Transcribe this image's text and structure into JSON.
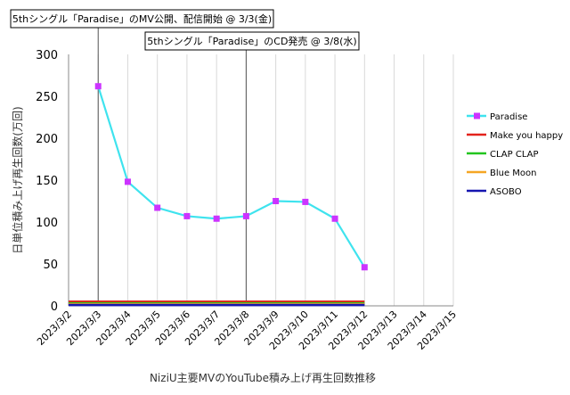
{
  "chart_data": {
    "type": "line",
    "title": "NiziU主要MVのYouTube積み上げ再生回数推移",
    "ylabel": "日単位積み上げ再生回数(万回)",
    "xlabel": "",
    "ylim": [
      0,
      300
    ],
    "yticks": [
      0,
      50,
      100,
      150,
      200,
      250,
      300
    ],
    "x": [
      "2023/3/2",
      "2023/3/3",
      "2023/3/4",
      "2023/3/5",
      "2023/3/6",
      "2023/3/7",
      "2023/3/8",
      "2023/3/9",
      "2023/3/10",
      "2023/3/11",
      "2023/3/12",
      "2023/3/13",
      "2023/3/14",
      "2023/3/15"
    ],
    "grid": "vertical",
    "legend_position": "right",
    "series": [
      {
        "name": "Paradise",
        "color": "#3fe3ee",
        "marker": "square",
        "marker_color": "#cc33ff",
        "values": [
          null,
          262,
          148,
          117,
          107,
          104,
          107,
          125,
          124,
          104,
          46,
          null,
          null,
          null
        ]
      },
      {
        "name": "Make you happy",
        "color": "#e3231c",
        "marker": "none",
        "values": [
          5,
          5,
          5,
          5,
          5,
          5,
          5,
          5,
          5,
          5,
          5,
          null,
          null,
          null
        ]
      },
      {
        "name": "CLAP CLAP",
        "color": "#22c51e",
        "marker": "none",
        "values": [
          3,
          3,
          3,
          3,
          3,
          3,
          3,
          3,
          3,
          3,
          3,
          null,
          null,
          null
        ]
      },
      {
        "name": "Blue Moon",
        "color": "#f5a623",
        "marker": "none",
        "values": [
          2,
          2,
          2,
          2,
          2,
          2,
          2,
          2,
          2,
          2,
          2,
          null,
          null,
          null
        ]
      },
      {
        "name": "ASOBO",
        "color": "#1515b0",
        "marker": "none",
        "values": [
          1,
          1,
          1,
          1,
          1,
          1,
          1,
          1,
          1,
          1,
          1,
          null,
          null,
          null
        ]
      }
    ],
    "annotations": [
      {
        "text": "5thシングル「Paradise」のMV公開、配信開始 @ 3/3(金)",
        "at": "2023/3/3"
      },
      {
        "text": "5thシングル「Paradise」のCD発売 @ 3/8(水)",
        "at": "2023/3/8"
      }
    ]
  }
}
